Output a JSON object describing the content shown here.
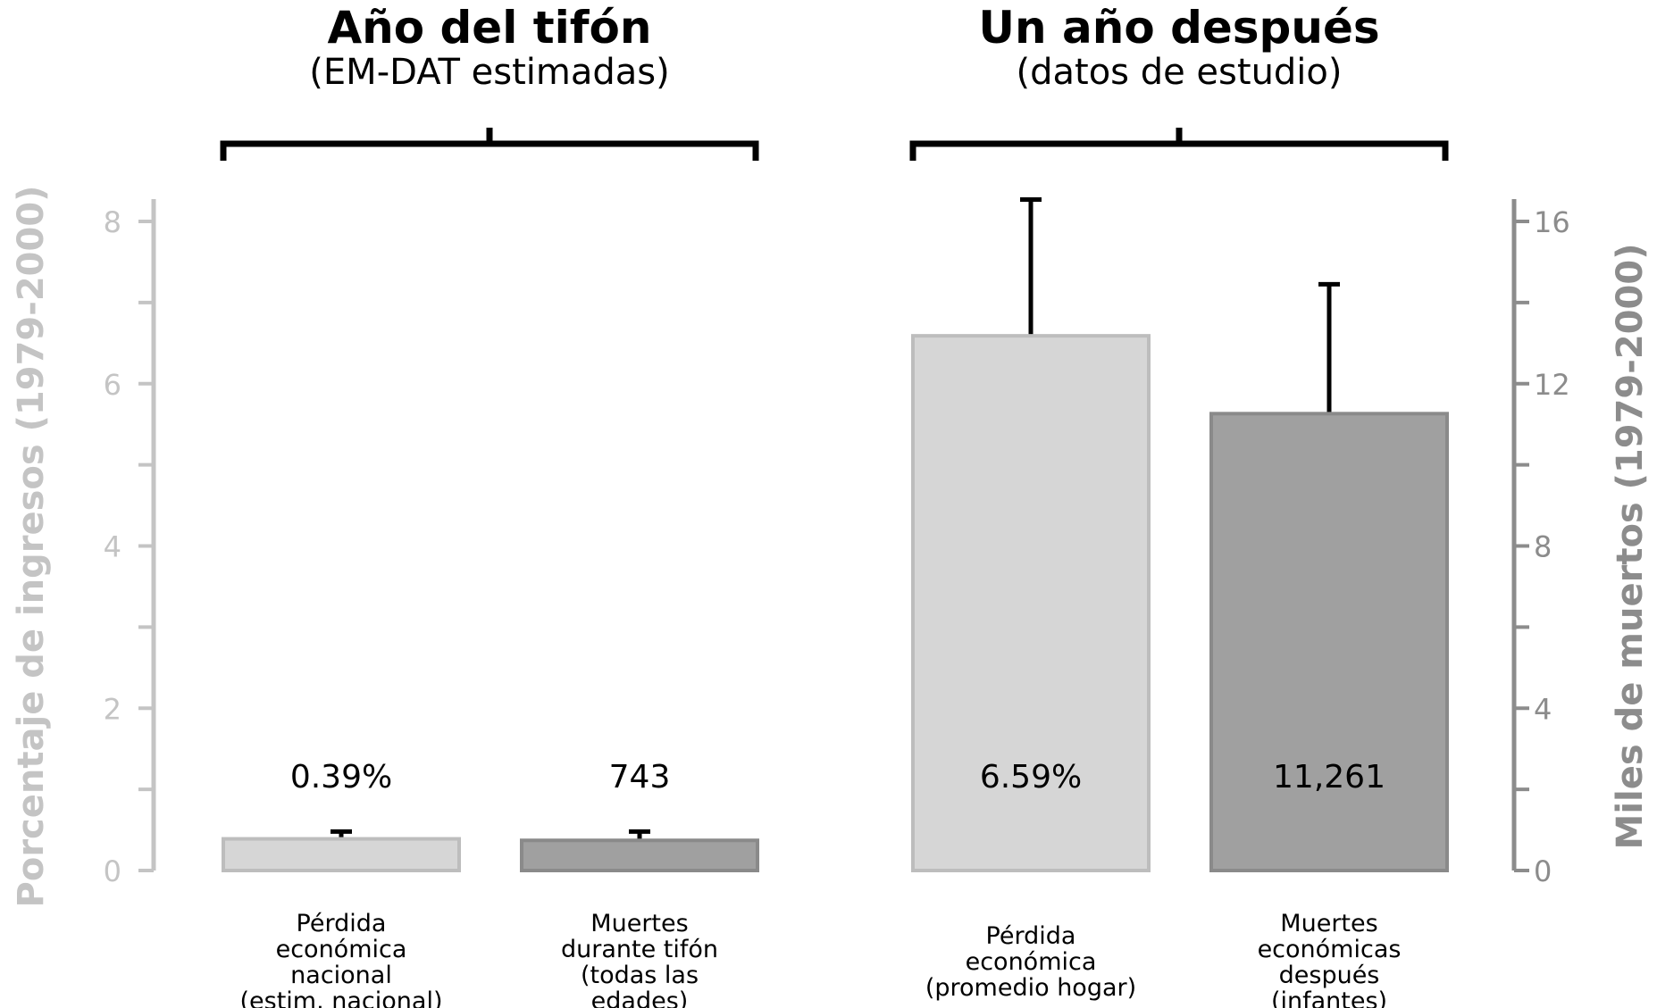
{
  "chart_data": {
    "type": "bar",
    "groups": [
      {
        "title": "Año del tifón",
        "subtitle": "(EM-DAT estimadas)"
      },
      {
        "title": "Un año después",
        "subtitle": "(datos de estudio)"
      }
    ],
    "left_axis": {
      "label": "Porcentaje de ingresos (1979-2000)",
      "ylim": [
        0,
        8
      ],
      "ticks": [
        "0",
        "2",
        "4",
        "6",
        "8"
      ],
      "color": "#c4c4c4"
    },
    "right_axis": {
      "label": "Miles de muertos (1979-2000)",
      "ylim": [
        0,
        16
      ],
      "ticks": [
        "0",
        "4",
        "8",
        "12",
        "16"
      ],
      "color": "#8c8c8c"
    },
    "bars": [
      {
        "group": 0,
        "axis": "left",
        "value": 0.39,
        "error_upper": 0.48,
        "label": "0.39%",
        "category": [
          "Pérdida",
          "económica",
          "nacional",
          "(estim. nacional)"
        ],
        "fill": "#d6d6d6",
        "stroke": "#bdbdbd"
      },
      {
        "group": 0,
        "axis": "right",
        "value": 0.743,
        "error_upper": 0.96,
        "label": "743",
        "category": [
          "Muertes",
          "durante tifón",
          "(todas las",
          "edades)"
        ],
        "fill": "#a0a0a0",
        "stroke": "#8a8a8a"
      },
      {
        "group": 1,
        "axis": "left",
        "value": 6.59,
        "error_upper": 8.27,
        "label": "6.59%",
        "category": [
          "Pérdida",
          "económica",
          "(promedio hogar)"
        ],
        "fill": "#d6d6d6",
        "stroke": "#bdbdbd"
      },
      {
        "group": 1,
        "axis": "right",
        "value": 11.261,
        "error_upper": 14.45,
        "label": "11,261",
        "category": [
          "Muertes",
          "económicas",
          "después",
          "(infantes)"
        ],
        "fill": "#a0a0a0",
        "stroke": "#8a8a8a"
      }
    ],
    "grid": false,
    "legend": "none"
  }
}
